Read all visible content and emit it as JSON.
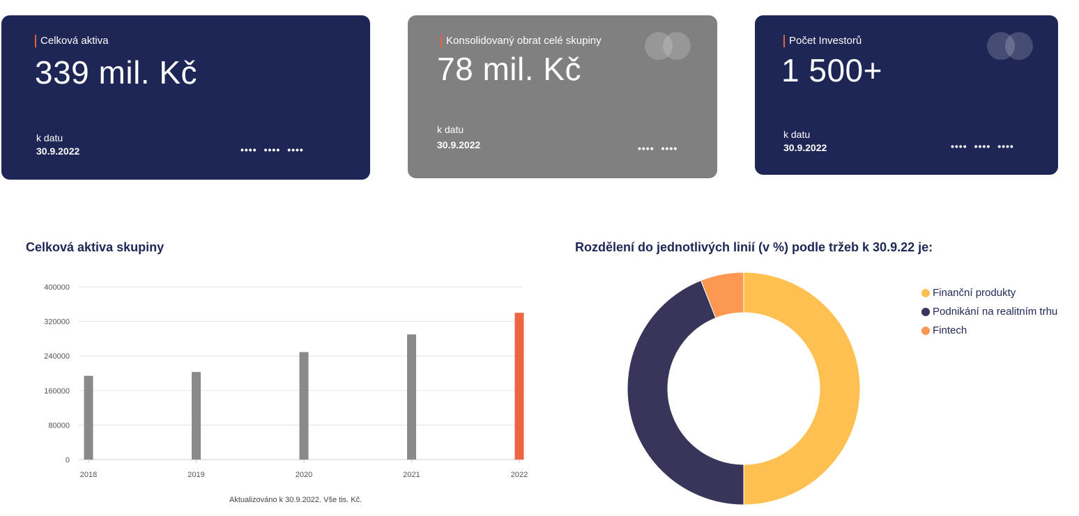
{
  "cards": [
    {
      "label": "Celková aktiva",
      "value": "339 mil. Kč",
      "date_label": "k datu",
      "date_value": "30.9.2022",
      "dots": [
        "••••",
        "••••",
        "••••"
      ]
    },
    {
      "label": "Konsolidovaný obrat celé skupiny",
      "value": "78 mil. Kč",
      "date_label": "k datu",
      "date_value": "30.9.2022",
      "dots": [
        "••••",
        "••••"
      ]
    },
    {
      "label": "Počet Investorů",
      "value": "1 500+",
      "date_label": "k datu",
      "date_value": "30.9.2022",
      "dots": [
        "••••",
        "••••",
        "••••"
      ]
    }
  ],
  "colors": {
    "navy": "#1e2656",
    "grey": "#808080",
    "accent": "#e8603c",
    "bar": "#8a8a8a",
    "bar_highlight": "#eb6641",
    "yellow": "#ffc052",
    "dark_purple": "#38355a",
    "orange": "#fd9752"
  },
  "chart_data": [
    {
      "type": "bar",
      "title": "Celková aktiva skupiny",
      "categories": [
        "2018",
        "2019",
        "2020",
        "2021",
        "2022"
      ],
      "values": [
        194000,
        203000,
        249000,
        290000,
        340000
      ],
      "ylim": [
        0,
        400000
      ],
      "yticks": [
        "0",
        "80000",
        "160000",
        "240000",
        "320000",
        "400000"
      ],
      "xlabel": "",
      "ylabel": "",
      "grid": true,
      "note": "Aktualizováno k 30.9.2022. Vše tis. Kč."
    },
    {
      "type": "pie",
      "title": "Rozdělení do jednotlivých linií (v %) podle tržeb k 30.9.22 je:",
      "labels": [
        "Finanční produkty",
        "Podnikání na realitním trhu",
        "Fintech"
      ],
      "values": [
        50,
        44,
        6
      ],
      "legend": "right"
    }
  ]
}
